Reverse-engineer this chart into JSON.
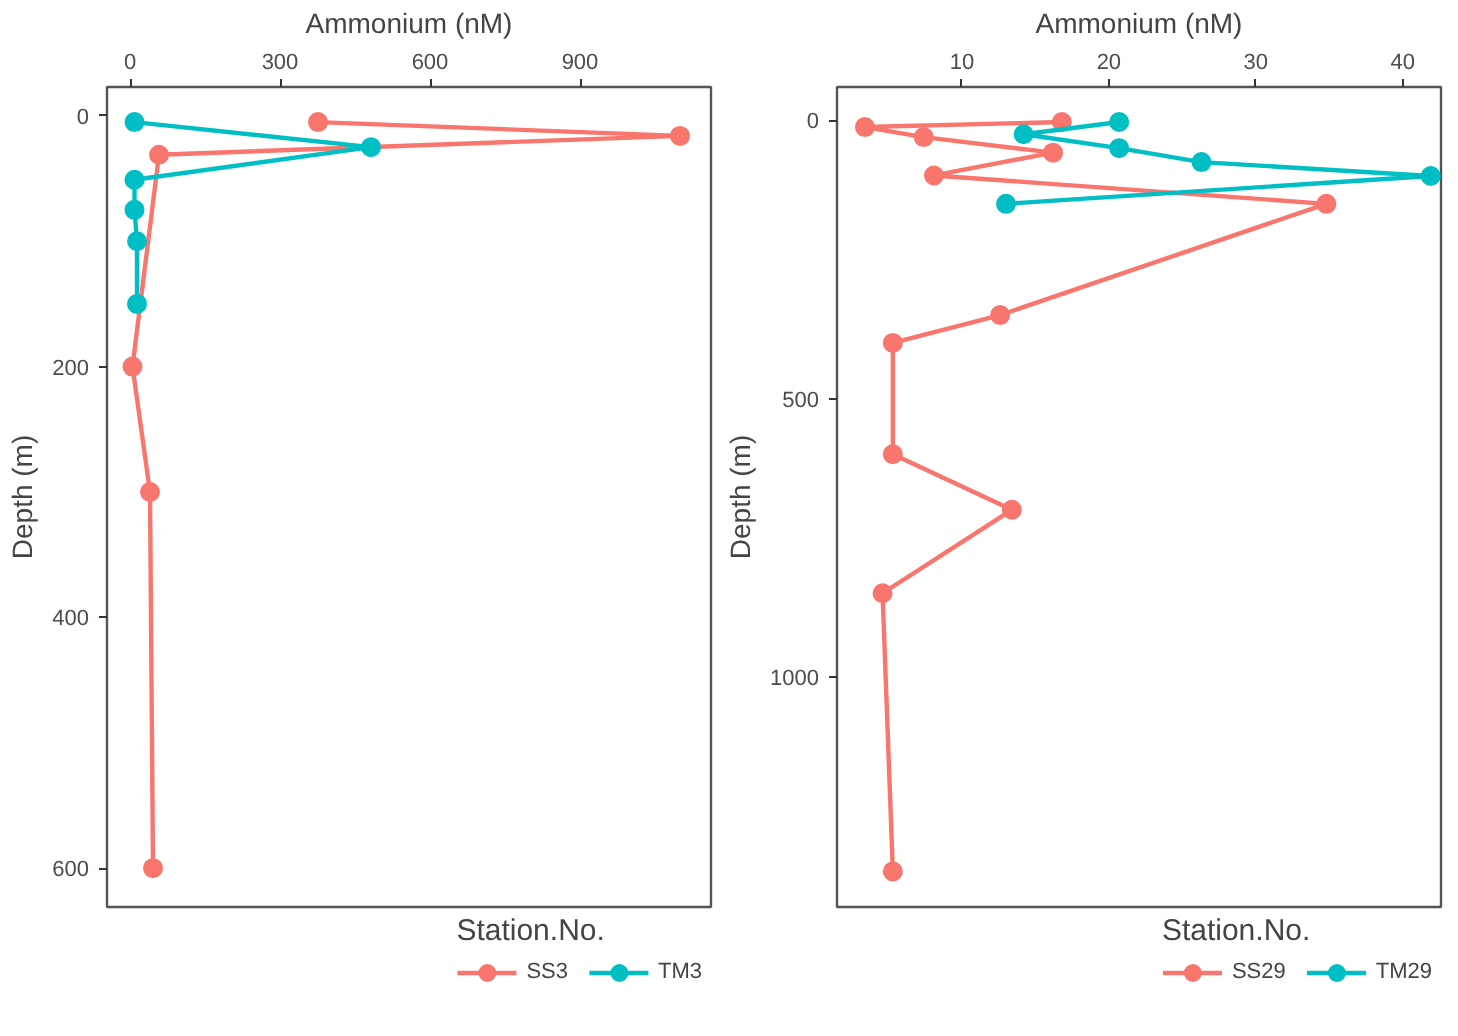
{
  "chart_data": [
    {
      "type": "line",
      "xlabel": "Ammonium (nM)",
      "ylabel": "Depth (m)",
      "legend_title": "Station.No.",
      "legend": "bottom",
      "grid": false,
      "marker": "circle",
      "line_style": "solid",
      "xlim": [
        -46,
        1162
      ],
      "xticks": [
        0,
        300,
        600,
        900
      ],
      "ylim": [
        631,
        -23
      ],
      "yticks": [
        0,
        200,
        400,
        600
      ],
      "series": [
        {
          "name": "SS3",
          "color": "#f8766d",
          "x": [
            376,
            1100,
            58,
            5,
            40,
            46
          ],
          "values": [
            5,
            16,
            31,
            200,
            300,
            600
          ]
        },
        {
          "name": "TM3",
          "color": "#00bfc4",
          "x": [
            9,
            482,
            9,
            9,
            14,
            14
          ],
          "values": [
            5,
            25,
            51,
            75,
            100,
            150
          ]
        }
      ]
    },
    {
      "type": "line",
      "xlabel": "Ammonium (nM)",
      "ylabel": "Depth (m)",
      "legend_title": "Station.No.",
      "legend": "bottom",
      "grid": false,
      "marker": "circle",
      "line_style": "solid",
      "xlim": [
        1.5,
        42.6
      ],
      "xticks": [
        10,
        20,
        30,
        40
      ],
      "ylim": [
        1414,
        -60
      ],
      "yticks": [
        0,
        500,
        1000
      ],
      "series": [
        {
          "name": "SS29",
          "color": "#f8766d",
          "x": [
            16.8,
            3.4,
            7.4,
            16.2,
            8.1,
            34.8,
            12.6,
            5.3,
            5.3,
            13.4,
            4.6,
            5.3
          ],
          "values": [
            3,
            12,
            30,
            58,
            99,
            150,
            350,
            400,
            600,
            700,
            850,
            1350
          ]
        },
        {
          "name": "TM29",
          "color": "#00bfc4",
          "x": [
            20.7,
            14.2,
            20.7,
            26.3,
            41.9,
            13
          ],
          "values": [
            3,
            25,
            50,
            75,
            100,
            150
          ]
        }
      ]
    }
  ]
}
